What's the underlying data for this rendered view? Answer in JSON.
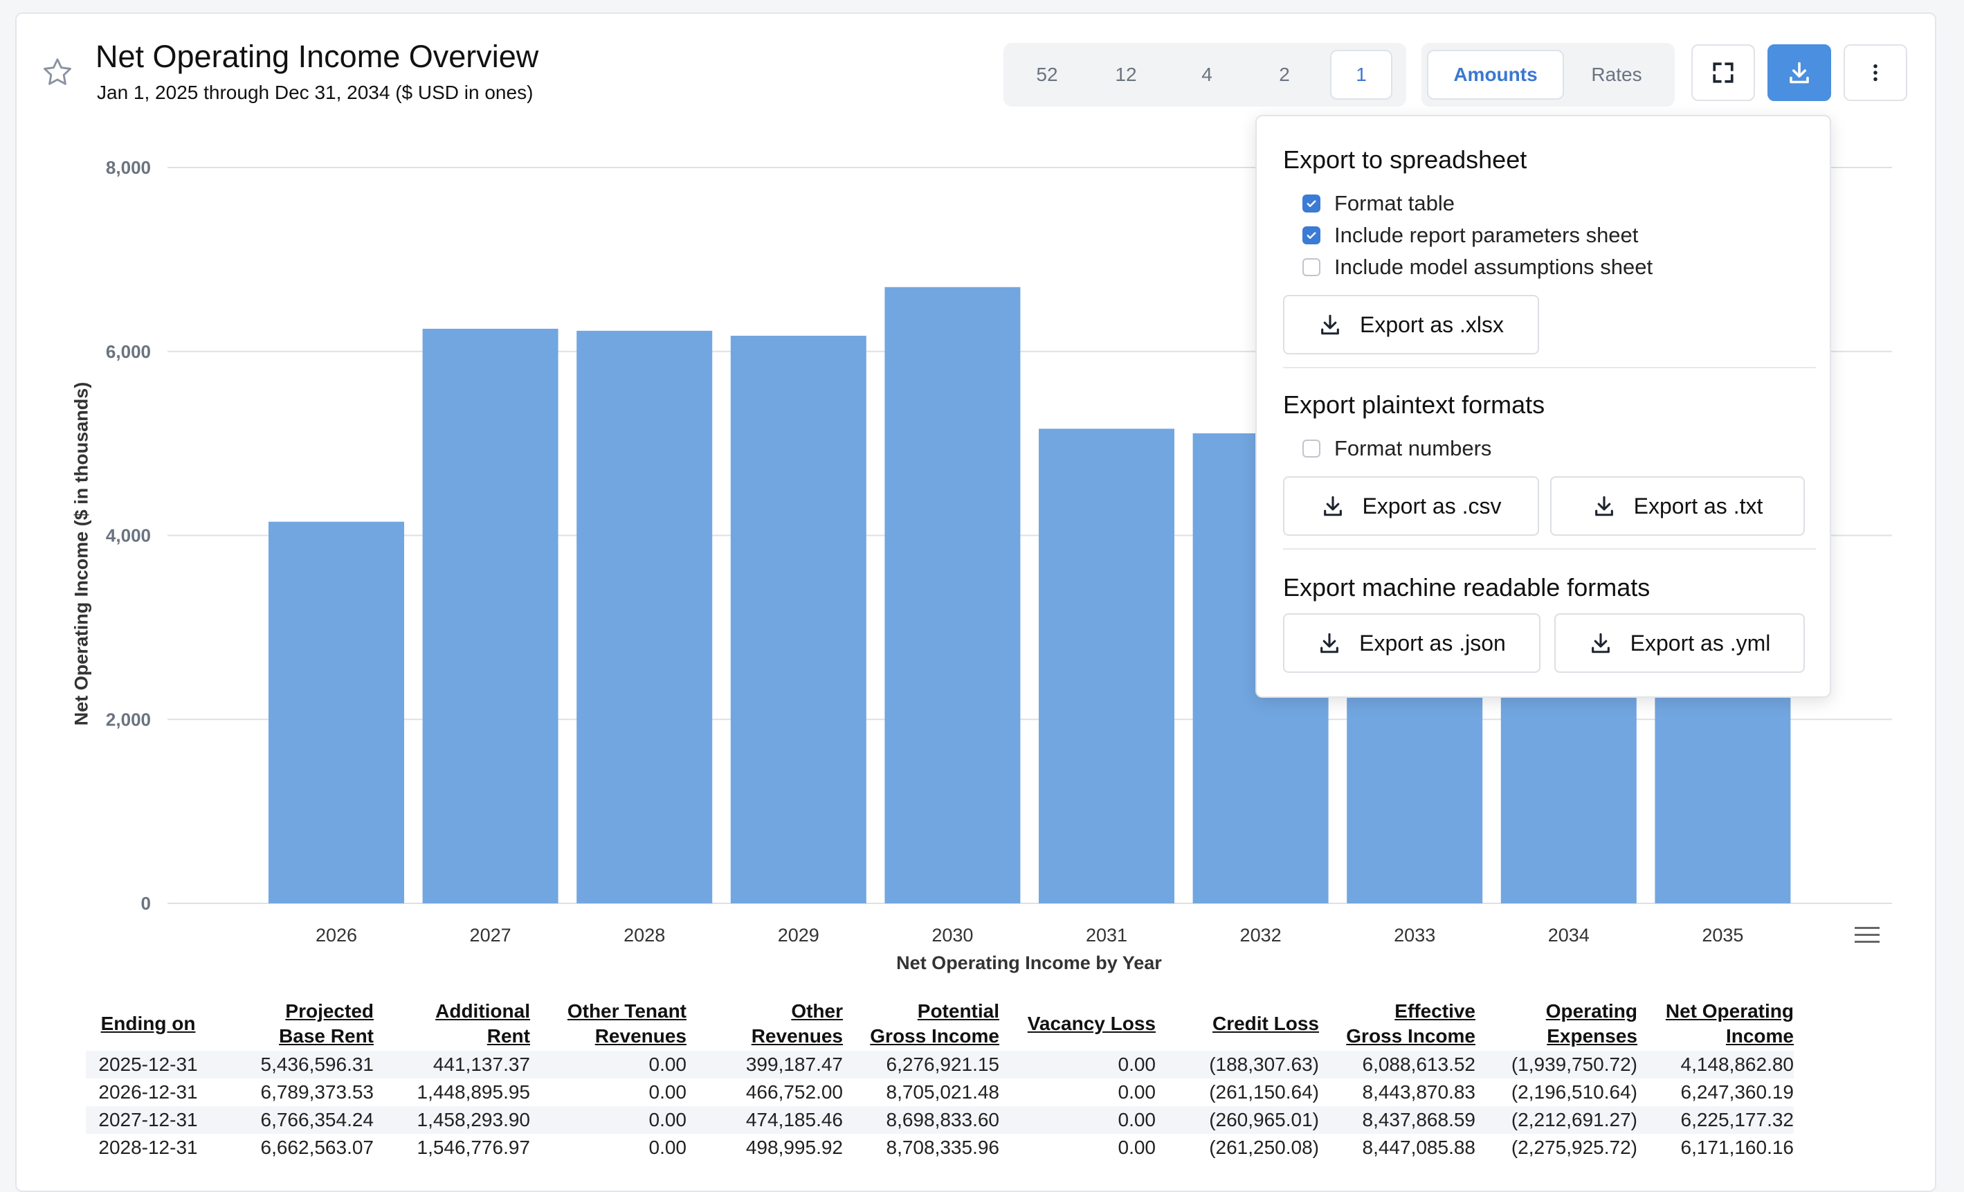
{
  "header": {
    "title": "Net Operating Income Overview",
    "subtitle": "Jan 1, 2025 through Dec 31, 2034 ($ USD in ones)"
  },
  "periods": [
    "52",
    "12",
    "4",
    "2",
    "1"
  ],
  "selected_period": "1",
  "modes": [
    "Amounts",
    "Rates"
  ],
  "selected_mode": "Amounts",
  "accent_color": "#4a8fe0",
  "bar_color": "#72a6e0",
  "icons": {
    "favorite": "star-icon",
    "fullscreen": "fullscreen-icon",
    "download": "download-icon",
    "more": "kebab-menu-icon",
    "chart_menu": "hamburger-icon"
  },
  "export_menu": {
    "spreadsheet_heading": "Export to spreadsheet",
    "format_table": {
      "label": "Format table",
      "checked": true
    },
    "include_params": {
      "label": "Include report parameters sheet",
      "checked": true
    },
    "include_assumptions": {
      "label": "Include model assumptions sheet",
      "checked": false
    },
    "xlsx_label": "Export as .xlsx",
    "plaintext_heading": "Export plaintext formats",
    "format_numbers": {
      "label": "Format numbers",
      "checked": false
    },
    "csv_label": "Export as .csv",
    "txt_label": "Export as .txt",
    "machine_heading": "Export machine readable formats",
    "json_label": "Export as .json",
    "yml_label": "Export as .yml"
  },
  "chart_data": {
    "type": "bar",
    "xlabel": "Net Operating Income by Year",
    "ylabel": "Net Operating Income ($ in thousands)",
    "ylim": [
      0,
      8000
    ],
    "yticks": [
      "0",
      "2,000",
      "4,000",
      "6,000",
      "8,000"
    ],
    "grid": true,
    "categories": [
      "2026",
      "2027",
      "2028",
      "2029",
      "2030",
      "2031",
      "2032",
      "2033",
      "2034",
      "2035"
    ],
    "values": [
      4149,
      6247,
      6225,
      6171,
      6700,
      5160,
      5110,
      4800,
      4800,
      4800
    ]
  },
  "table": {
    "headers": [
      [
        "Ending on"
      ],
      [
        "Projected",
        "Base Rent"
      ],
      [
        "Additional",
        "Rent"
      ],
      [
        "Other Tenant",
        "Revenues"
      ],
      [
        "Other",
        "Revenues"
      ],
      [
        "Potential",
        "Gross Income"
      ],
      [
        "Vacancy Loss"
      ],
      [
        "Credit Loss"
      ],
      [
        "Effective",
        "Gross Income"
      ],
      [
        "Operating",
        "Expenses"
      ],
      [
        "Net Operating",
        "Income"
      ]
    ],
    "rows": [
      [
        "2025-12-31",
        "5,436,596.31",
        "441,137.37",
        "0.00",
        "399,187.47",
        "6,276,921.15",
        "0.00",
        "(188,307.63)",
        "6,088,613.52",
        "(1,939,750.72)",
        "4,148,862.80"
      ],
      [
        "2026-12-31",
        "6,789,373.53",
        "1,448,895.95",
        "0.00",
        "466,752.00",
        "8,705,021.48",
        "0.00",
        "(261,150.64)",
        "8,443,870.83",
        "(2,196,510.64)",
        "6,247,360.19"
      ],
      [
        "2027-12-31",
        "6,766,354.24",
        "1,458,293.90",
        "0.00",
        "474,185.46",
        "8,698,833.60",
        "0.00",
        "(260,965.01)",
        "8,437,868.59",
        "(2,212,691.27)",
        "6,225,177.32"
      ],
      [
        "2028-12-31",
        "6,662,563.07",
        "1,546,776.97",
        "0.00",
        "498,995.92",
        "8,708,335.96",
        "0.00",
        "(261,250.08)",
        "8,447,085.88",
        "(2,275,925.72)",
        "6,171,160.16"
      ]
    ]
  }
}
